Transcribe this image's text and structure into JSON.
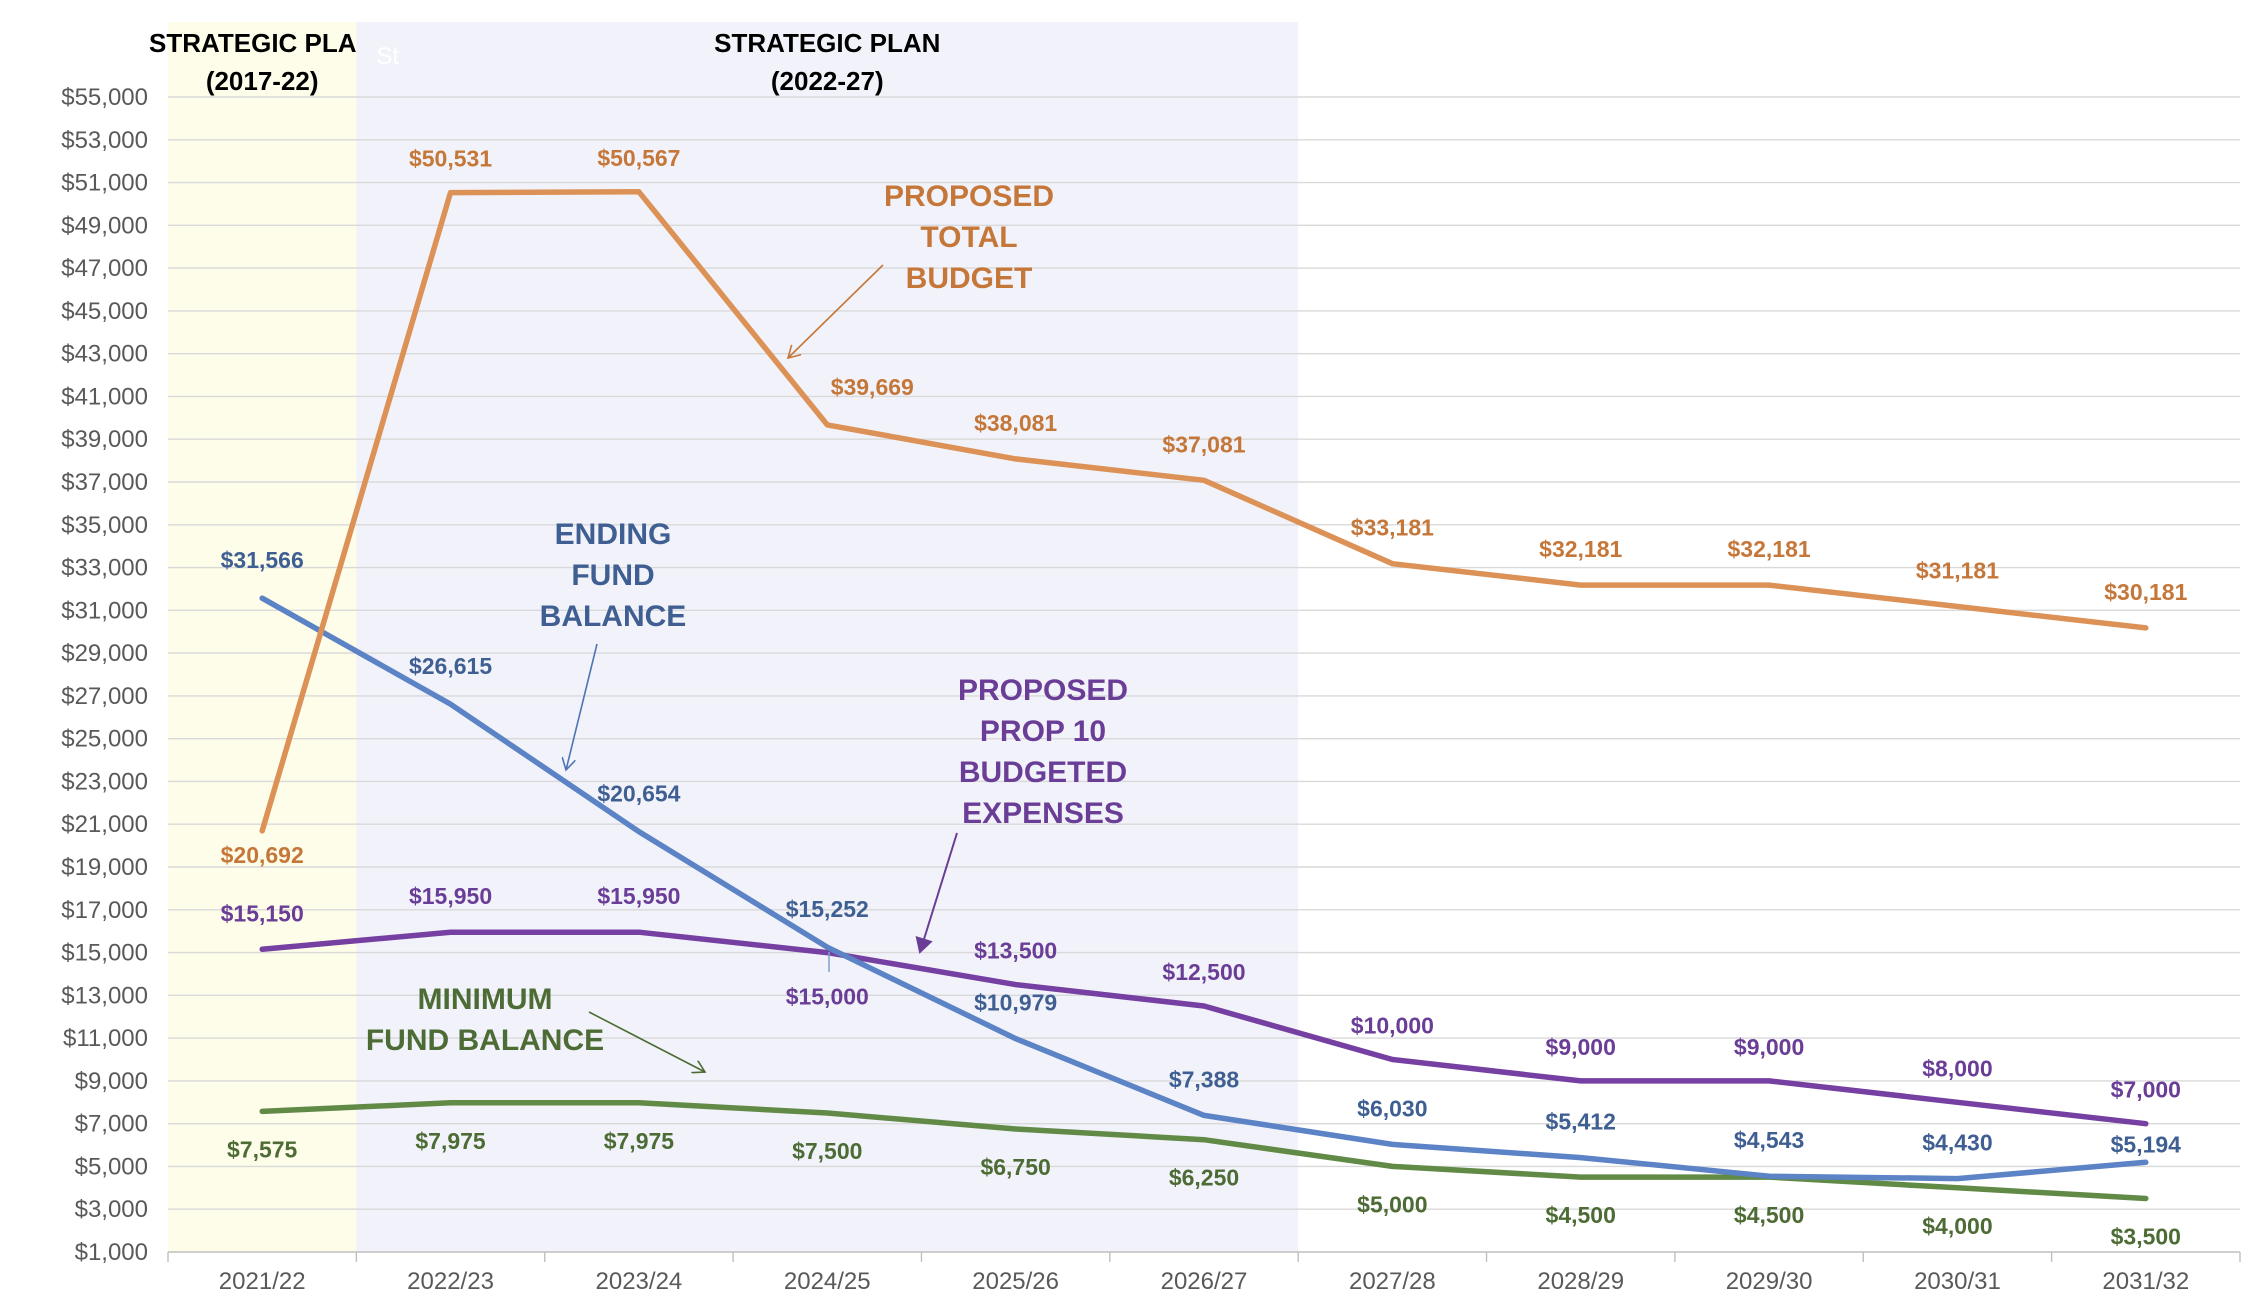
{
  "chart_data": {
    "type": "line",
    "title": "",
    "xlabel": "",
    "ylabel": "",
    "categories": [
      "2021/22",
      "2022/23",
      "2023/24",
      "2024/25",
      "2025/26",
      "2026/27",
      "2027/28",
      "2028/29",
      "2029/30",
      "2030/31",
      "2031/32"
    ],
    "ylim": [
      1000,
      55000
    ],
    "yticks": [
      "$1,000",
      "$3,000",
      "$5,000",
      "$7,000",
      "$9,000",
      "$11,000",
      "$13,000",
      "$15,000",
      "$17,000",
      "$19,000",
      "$21,000",
      "$23,000",
      "$25,000",
      "$27,000",
      "$29,000",
      "$31,000",
      "$33,000",
      "$35,000",
      "$37,000",
      "$39,000",
      "$41,000",
      "$43,000",
      "$45,000",
      "$47,000",
      "$49,000",
      "$51,000",
      "$53,000",
      "$55,000"
    ],
    "grid": true,
    "bands": [
      {
        "title_line1": "STRATEGIC PLAN",
        "title_line2": "(2017-22)",
        "from_index": 0,
        "to_index": 0,
        "color": "#fdfde9",
        "stray_text": ""
      },
      {
        "title_line1": "STRATEGIC PLAN",
        "title_line2": "(2022-27)",
        "from_index": 1,
        "to_index": 5,
        "color": "#f2f3fa",
        "stray_text": "St"
      }
    ],
    "series": [
      {
        "name": "Proposed Total Budget",
        "annotation": [
          "PROPOSED",
          "TOTAL",
          "BUDGET"
        ],
        "color": "#dc9257",
        "label_color": "#c5773a",
        "values": [
          20692,
          50531,
          50567,
          39669,
          38081,
          37081,
          33181,
          32181,
          32181,
          31181,
          30181
        ],
        "labels": [
          "$20,692",
          "$50,531",
          "$50,567",
          "$39,669",
          "$38,081",
          "$37,081",
          "$33,181",
          "$32,181",
          "$32,181",
          "$31,181",
          "$30,181"
        ]
      },
      {
        "name": "Ending Fund Balance",
        "annotation": [
          "ENDING",
          "FUND",
          "BALANCE"
        ],
        "color": "#5b83c5",
        "label_color": "#3f5f93",
        "values": [
          31566,
          26615,
          20654,
          15252,
          10979,
          7388,
          6030,
          5412,
          4543,
          4430,
          5194
        ],
        "labels": [
          "$31,566",
          "$26,615",
          "$20,654",
          "$15,252",
          "$10,979",
          "$7,388",
          "$6,030",
          "$5,412",
          "$4,543",
          "$4,430",
          "$5,194"
        ]
      },
      {
        "name": "Proposed Prop 10 Budgeted Expenses",
        "annotation": [
          "PROPOSED",
          "PROP 10",
          "BUDGETED",
          "EXPENSES"
        ],
        "color": "#7540a1",
        "label_color": "#6a3d96",
        "values": [
          15150,
          15950,
          15950,
          15000,
          13500,
          12500,
          10000,
          9000,
          9000,
          8000,
          7000
        ],
        "labels": [
          "$15,150",
          "$15,950",
          "$15,950",
          "$15,000",
          "$13,500",
          "$12,500",
          "$10,000",
          "$9,000",
          "$9,000",
          "$8,000",
          "$7,000"
        ]
      },
      {
        "name": "Minimum Fund Balance",
        "annotation": [
          "MINIMUM",
          "FUND BALANCE"
        ],
        "color": "#628a47",
        "label_color": "#4d6b35",
        "values": [
          7575,
          7975,
          7975,
          7500,
          6750,
          6250,
          5000,
          4500,
          4500,
          4000,
          3500
        ],
        "labels": [
          "$7,575",
          "$7,975",
          "$7,975",
          "$7,500",
          "$6,750",
          "$6,250",
          "$5,000",
          "$4,500",
          "$4,500",
          "$4,000",
          "$3,500"
        ]
      }
    ]
  }
}
